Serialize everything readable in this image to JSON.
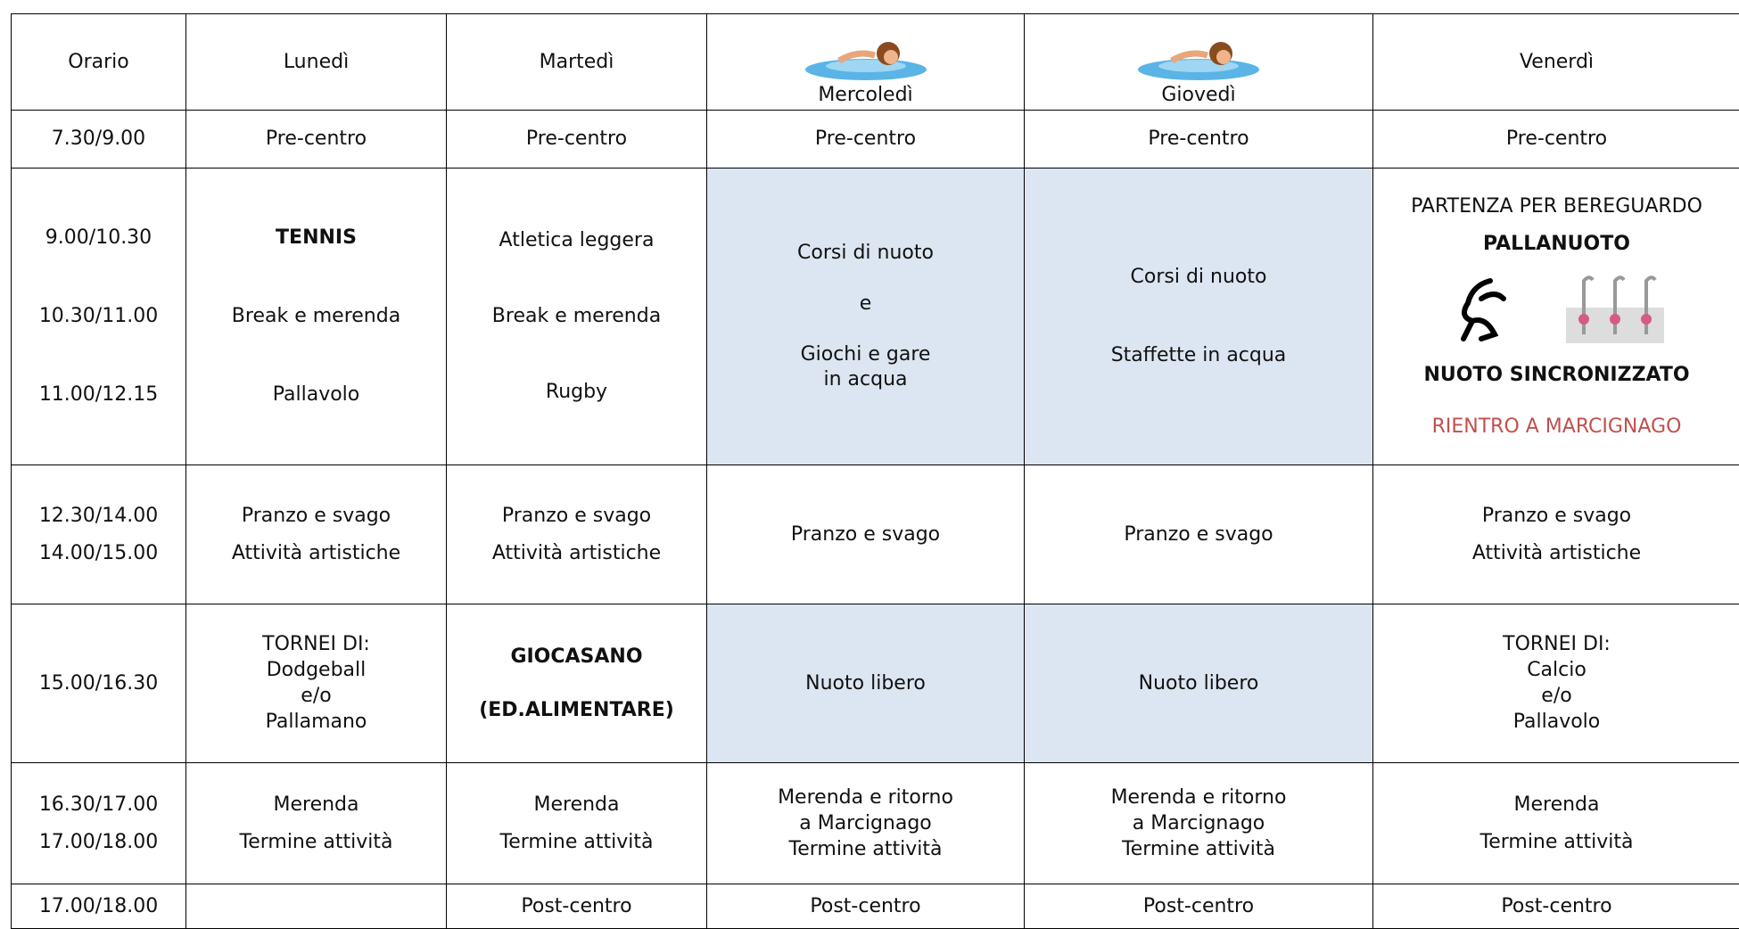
{
  "table": {
    "header": [
      "Orario",
      "Lunedì",
      "Martedì",
      "Mercoledì",
      "Giovedì",
      "Venerdì"
    ],
    "rows": [
      [
        [
          "7.30/9.00"
        ],
        [
          "Pre-centro"
        ],
        [
          "Pre-centro"
        ],
        [
          "Pre-centro"
        ],
        [
          "Pre-centro"
        ],
        [
          "Pre-centro"
        ]
      ],
      [
        [
          "9.00/10.30",
          "10.30/11.00",
          "11.00/12.15"
        ],
        [
          "TENNIS",
          "Break e merenda",
          "Pallavolo"
        ],
        [
          "Atletica leggera",
          "Break e merenda",
          "Rugby"
        ],
        [
          "Corsi di nuoto",
          "e",
          "Giochi e gare",
          "in acqua"
        ],
        [
          "Corsi di nuoto",
          "Staffette in acqua"
        ],
        [
          "PARTENZA PER BEREGUARDO",
          "PALLANUOTO",
          "NUOTO SINCRONIZZATO",
          "RIENTRO A MARCIGNAGO"
        ]
      ],
      [
        [
          "12.30/14.00",
          "14.00/15.00"
        ],
        [
          "Pranzo e svago",
          "Attività artistiche"
        ],
        [
          "Pranzo e svago",
          "Attività artistiche"
        ],
        [
          "Pranzo e svago"
        ],
        [
          "Pranzo e svago"
        ],
        [
          "Pranzo e svago",
          "Attività artistiche"
        ]
      ],
      [
        [
          "15.00/16.30"
        ],
        [
          "TORNEI DI:",
          "Dodgeball",
          "e/o",
          "Pallamano"
        ],
        [
          "GIOCASANO",
          "(ED.ALIMENTARE)"
        ],
        [
          "Nuoto libero"
        ],
        [
          "Nuoto libero"
        ],
        [
          "TORNEI DI:",
          "Calcio",
          "e/o",
          "Pallavolo"
        ]
      ],
      [
        [
          "16.30/17.00",
          "17.00/18.00"
        ],
        [
          "Merenda",
          "Termine attività"
        ],
        [
          "Merenda",
          "Termine attività"
        ],
        [
          "Merenda e ritorno",
          "a Marcignago",
          "Termine attività"
        ],
        [
          "Merenda e ritorno",
          "a Marcignago",
          "Termine attività"
        ],
        [
          "Merenda",
          "Termine attività"
        ]
      ],
      [
        [
          "17.00/18.00"
        ],
        [],
        [
          "Post-centro"
        ],
        [
          "Post-centro"
        ],
        [
          "Post-centro"
        ],
        [
          "Post-centro"
        ]
      ]
    ]
  }
}
